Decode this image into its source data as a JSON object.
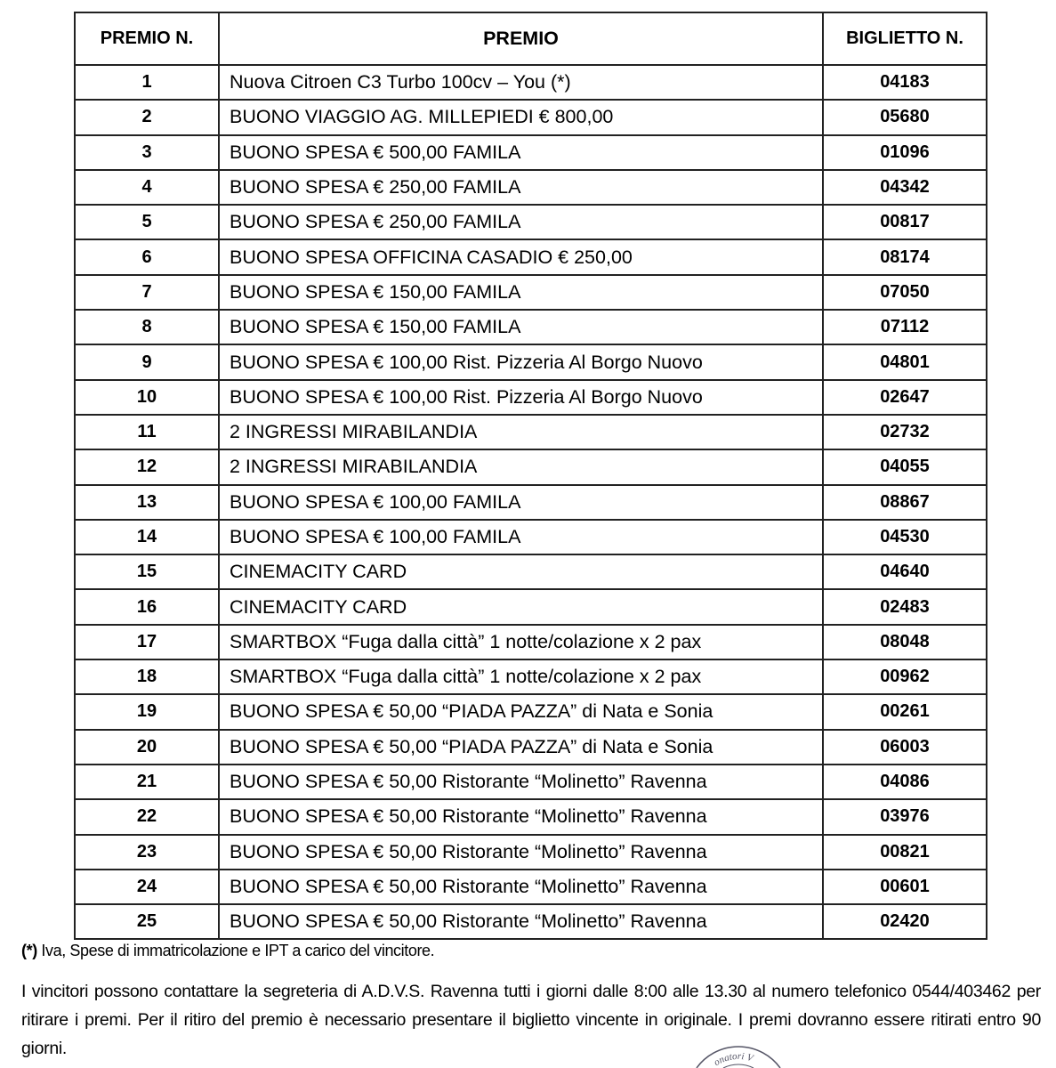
{
  "table": {
    "headers": [
      "PREMIO N.",
      "PREMIO",
      "BIGLIETTO N."
    ],
    "rows": [
      [
        "1",
        "Nuova Citroen C3 Turbo 100cv – You (*)",
        "04183"
      ],
      [
        "2",
        "BUONO VIAGGIO AG. MILLEPIEDI € 800,00",
        "05680"
      ],
      [
        "3",
        "BUONO SPESA € 500,00 FAMILA",
        "01096"
      ],
      [
        "4",
        "BUONO SPESA € 250,00 FAMILA",
        "04342"
      ],
      [
        "5",
        "BUONO SPESA € 250,00 FAMILA",
        "00817"
      ],
      [
        "6",
        "BUONO SPESA OFFICINA CASADIO € 250,00",
        "08174"
      ],
      [
        "7",
        "BUONO SPESA € 150,00 FAMILA",
        "07050"
      ],
      [
        "8",
        "BUONO SPESA € 150,00 FAMILA",
        "07112"
      ],
      [
        "9",
        "BUONO SPESA € 100,00 Rist. Pizzeria Al Borgo Nuovo",
        "04801"
      ],
      [
        "10",
        "BUONO SPESA € 100,00 Rist. Pizzeria Al Borgo Nuovo",
        "02647"
      ],
      [
        "11",
        "2 INGRESSI MIRABILANDIA",
        "02732"
      ],
      [
        "12",
        "2 INGRESSI MIRABILANDIA",
        "04055"
      ],
      [
        "13",
        "BUONO SPESA € 100,00 FAMILA",
        "08867"
      ],
      [
        "14",
        "BUONO SPESA € 100,00 FAMILA",
        "04530"
      ],
      [
        "15",
        "CINEMACITY CARD",
        "04640"
      ],
      [
        "16",
        "CINEMACITY CARD",
        "02483"
      ],
      [
        "17",
        "SMARTBOX “Fuga dalla città” 1 notte/colazione x 2 pax",
        "08048"
      ],
      [
        "18",
        "SMARTBOX “Fuga dalla città” 1 notte/colazione x 2 pax",
        "00962"
      ],
      [
        "19",
        "BUONO SPESA € 50,00 “PIADA PAZZA” di Nata e Sonia",
        "00261"
      ],
      [
        "20",
        "BUONO SPESA € 50,00 “PIADA PAZZA” di Nata e Sonia",
        "06003"
      ],
      [
        "21",
        "BUONO SPESA € 50,00 Ristorante “Molinetto” Ravenna",
        "04086"
      ],
      [
        "22",
        "BUONO SPESA € 50,00 Ristorante “Molinetto” Ravenna",
        "03976"
      ],
      [
        "23",
        "BUONO SPESA € 50,00 Ristorante “Molinetto” Ravenna",
        "00821"
      ],
      [
        "24",
        "BUONO SPESA € 50,00 Ristorante “Molinetto” Ravenna",
        "00601"
      ],
      [
        "25",
        "BUONO SPESA € 50,00 Ristorante “Molinetto” Ravenna",
        "02420"
      ]
    ]
  },
  "footnote_marker": "(*)",
  "footnote": " Iva, Spese di immatricolazione e IPT a carico del vincitore.",
  "paragraph": "I vincitori possono contattare la segreteria di A.D.V.S. Ravenna tutti i giorni dalle 8:00 alle 13.30 al numero telefonico 0544/403462 per ritirare i premi. Per il ritiro del premio è necessario presentare il biglietto vincente in originale. I premi dovranno essere ritirati entro 90 giorni.",
  "stamp_text": "onatori V"
}
